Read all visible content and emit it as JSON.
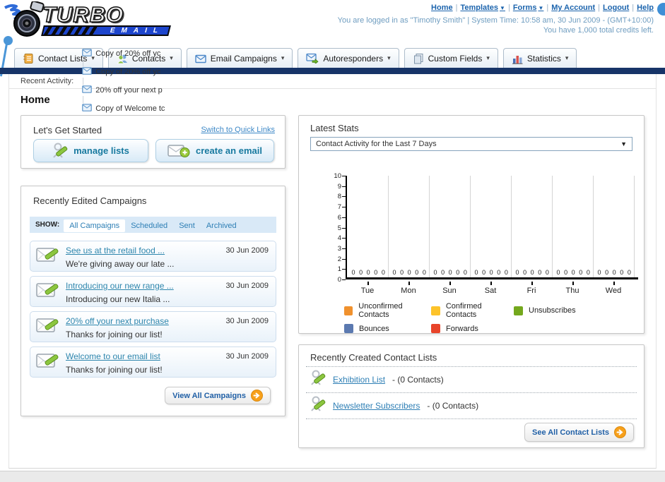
{
  "logo": {
    "title": "TURBO",
    "subtitle": "EMAIL"
  },
  "header": {
    "links": [
      {
        "label": "Home",
        "has_menu": false
      },
      {
        "label": "Templates",
        "has_menu": true
      },
      {
        "label": "Forms",
        "has_menu": true
      },
      {
        "label": "My Account",
        "has_menu": false
      },
      {
        "label": "Logout",
        "has_menu": false
      },
      {
        "label": "Help",
        "has_menu": false
      }
    ],
    "status_line": "You are logged in as \"Timothy Smith\" | System Time: 10:58 am, 30 Jun 2009 - (GMT+10:00)",
    "credits_line": "You have 1,000 total credits left."
  },
  "nav": {
    "tabs": [
      {
        "label": "Contact Lists",
        "icon": "address-book-icon"
      },
      {
        "label": "Contacts",
        "icon": "people-icon"
      },
      {
        "label": "Email Campaigns",
        "icon": "envelope-icon"
      },
      {
        "label": "Autoresponders",
        "icon": "envelope-arrow-icon"
      },
      {
        "label": "Custom Fields",
        "icon": "documents-icon"
      },
      {
        "label": "Statistics",
        "icon": "bar-chart-icon"
      }
    ]
  },
  "recent_activity": {
    "label": "Recent Activity:",
    "items": [
      "Copy of 20% off yc",
      "Copy of 20% off yc",
      "20% off your next p",
      "Copy of Welcome tc"
    ]
  },
  "page": {
    "title": "Home"
  },
  "get_started": {
    "title": "Let's Get Started",
    "switch_link": "Switch to Quick Links",
    "buttons": [
      {
        "label": "manage lists"
      },
      {
        "label": "create an email"
      }
    ]
  },
  "campaigns": {
    "title": "Recently Edited Campaigns",
    "show_label": "SHOW:",
    "filters": [
      "All Campaigns",
      "Scheduled",
      "Sent",
      "Archived"
    ],
    "active_filter": "All Campaigns",
    "items": [
      {
        "title": "See us at the retail food ...",
        "subtitle": "We're giving away our late ...",
        "date": "30 Jun 2009"
      },
      {
        "title": "Introducing our new range ...",
        "subtitle": "Introducing our new Italia ...",
        "date": "30 Jun 2009"
      },
      {
        "title": "20% off your next purchase",
        "subtitle": "Thanks for joining our list!",
        "date": "30 Jun 2009"
      },
      {
        "title": "Welcome to our email list",
        "subtitle": "Thanks for joining our list!",
        "date": "30 Jun 2009"
      }
    ],
    "view_all_label": "View All Campaigns"
  },
  "stats": {
    "title": "Latest Stats",
    "selected_option": "Contact Activity for the Last 7 Days"
  },
  "chart_data": {
    "type": "bar",
    "title": "Contact Activity for the Last 7 Days",
    "categories": [
      "Tue",
      "Mon",
      "Sun",
      "Sat",
      "Fri",
      "Thu",
      "Wed"
    ],
    "series": [
      {
        "name": "Unconfirmed Contacts",
        "color": "#f0912d",
        "values": [
          0,
          0,
          0,
          0,
          0,
          0,
          0
        ]
      },
      {
        "name": "Confirmed Contacts",
        "color": "#fdc32a",
        "values": [
          0,
          0,
          0,
          0,
          0,
          0,
          0
        ]
      },
      {
        "name": "Unsubscribes",
        "color": "#74a81d",
        "values": [
          0,
          0,
          0,
          0,
          0,
          0,
          0
        ]
      },
      {
        "name": "Bounces",
        "color": "#5b79b0",
        "values": [
          0,
          0,
          0,
          0,
          0,
          0,
          0
        ]
      },
      {
        "name": "Forwards",
        "color": "#e8442a",
        "values": [
          0,
          0,
          0,
          0,
          0,
          0,
          0
        ]
      }
    ],
    "xlabel": "",
    "ylabel": "",
    "ylim": [
      0,
      10
    ],
    "ytick_step": 1,
    "grid": true,
    "legend_position": "bottom",
    "value_labels_shown": true
  },
  "contact_lists": {
    "title": "Recently Created Contact Lists",
    "items": [
      {
        "name": "Exhibition List",
        "detail": "- (0 Contacts)"
      },
      {
        "name": "Newsletter Subscribers",
        "detail": "- (0 Contacts)"
      }
    ],
    "see_all_label": "See All Contact Lists"
  },
  "colors": {
    "navy_bar": "#173468",
    "link_blue": "#2e7fb5",
    "header_link_blue": "#1c64ad",
    "accent_orange_arrow": "#f7a01b",
    "logo_banner_blue": "#1d45cc",
    "decor_dot_blue": "#4a96d8"
  }
}
